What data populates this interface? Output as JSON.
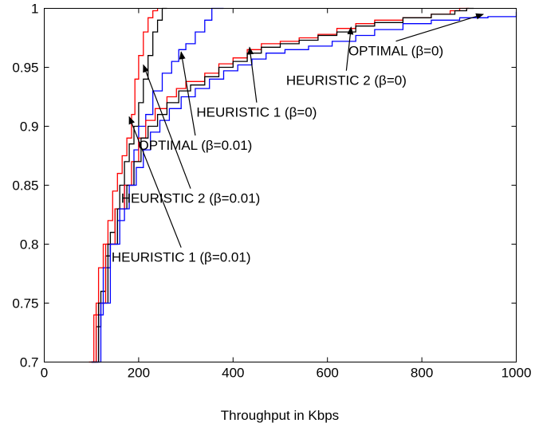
{
  "chart_data": {
    "type": "line",
    "title": "",
    "xlabel": "Throughput in Kbps",
    "ylabel": "",
    "xlim": [
      0,
      1000
    ],
    "ylim": [
      0.7,
      1
    ],
    "xticks": [
      0,
      200,
      400,
      600,
      800,
      1000
    ],
    "xtick_labels": [
      "0",
      "200",
      "400",
      "600",
      "800",
      "1000"
    ],
    "yticks": [
      0.7,
      0.75,
      0.8,
      0.85,
      0.9,
      0.95,
      1
    ],
    "ytick_labels": [
      "0.7",
      "0.75",
      "0.8",
      "0.85",
      "0.9",
      "0.95",
      "1"
    ],
    "grid": false,
    "legend": "none",
    "series": [
      {
        "color": "#ff0000",
        "points": [
          [
            95,
            0.7
          ],
          [
            105,
            0.74
          ],
          [
            115,
            0.78
          ],
          [
            125,
            0.8
          ],
          [
            135,
            0.82
          ],
          [
            145,
            0.845
          ],
          [
            155,
            0.86
          ],
          [
            165,
            0.875
          ],
          [
            175,
            0.89
          ],
          [
            185,
            0.91
          ],
          [
            192,
            0.94
          ],
          [
            200,
            0.96
          ],
          [
            210,
            0.98
          ],
          [
            220,
            0.992
          ],
          [
            230,
            0.998
          ],
          [
            240,
            1.0
          ]
        ]
      },
      {
        "color": "#000000",
        "points": [
          [
            100,
            0.7
          ],
          [
            110,
            0.73
          ],
          [
            120,
            0.76
          ],
          [
            130,
            0.79
          ],
          [
            140,
            0.81
          ],
          [
            150,
            0.83
          ],
          [
            160,
            0.85
          ],
          [
            170,
            0.87
          ],
          [
            180,
            0.885
          ],
          [
            190,
            0.9
          ],
          [
            200,
            0.92
          ],
          [
            210,
            0.94
          ],
          [
            220,
            0.96
          ],
          [
            230,
            0.98
          ],
          [
            240,
            0.99
          ],
          [
            250,
            1.0
          ],
          [
            260,
            1.0
          ]
        ]
      },
      {
        "color": "#0000ff",
        "points": [
          [
            100,
            0.7
          ],
          [
            115,
            0.74
          ],
          [
            125,
            0.78
          ],
          [
            140,
            0.8
          ],
          [
            155,
            0.82
          ],
          [
            170,
            0.85
          ],
          [
            190,
            0.88
          ],
          [
            200,
            0.9
          ],
          [
            215,
            0.91
          ],
          [
            230,
            0.93
          ],
          [
            250,
            0.945
          ],
          [
            270,
            0.955
          ],
          [
            285,
            0.965
          ],
          [
            300,
            0.97
          ],
          [
            320,
            0.98
          ],
          [
            340,
            0.99
          ],
          [
            355,
            1.0
          ],
          [
            380,
            1.0
          ]
        ]
      },
      {
        "color": "#ff0000",
        "points": [
          [
            95,
            0.7
          ],
          [
            110,
            0.75
          ],
          [
            130,
            0.8
          ],
          [
            150,
            0.83
          ],
          [
            170,
            0.85
          ],
          [
            185,
            0.87
          ],
          [
            200,
            0.89
          ],
          [
            215,
            0.905
          ],
          [
            235,
            0.915
          ],
          [
            260,
            0.925
          ],
          [
            280,
            0.932
          ],
          [
            300,
            0.938
          ],
          [
            340,
            0.945
          ],
          [
            370,
            0.953
          ],
          [
            400,
            0.958
          ],
          [
            430,
            0.965
          ],
          [
            460,
            0.97
          ],
          [
            500,
            0.972
          ],
          [
            540,
            0.975
          ],
          [
            580,
            0.978
          ],
          [
            620,
            0.983
          ],
          [
            660,
            0.987
          ],
          [
            700,
            0.99
          ],
          [
            760,
            0.992
          ],
          [
            820,
            0.995
          ],
          [
            860,
            0.998
          ],
          [
            880,
            1.0
          ],
          [
            900,
            1.0
          ]
        ]
      },
      {
        "color": "#000000",
        "points": [
          [
            100,
            0.7
          ],
          [
            115,
            0.75
          ],
          [
            135,
            0.8
          ],
          [
            155,
            0.83
          ],
          [
            175,
            0.85
          ],
          [
            190,
            0.87
          ],
          [
            205,
            0.89
          ],
          [
            220,
            0.9
          ],
          [
            240,
            0.91
          ],
          [
            260,
            0.92
          ],
          [
            285,
            0.93
          ],
          [
            310,
            0.935
          ],
          [
            340,
            0.942
          ],
          [
            370,
            0.95
          ],
          [
            400,
            0.955
          ],
          [
            430,
            0.962
          ],
          [
            460,
            0.967
          ],
          [
            500,
            0.97
          ],
          [
            540,
            0.973
          ],
          [
            580,
            0.977
          ],
          [
            620,
            0.98
          ],
          [
            660,
            0.985
          ],
          [
            700,
            0.988
          ],
          [
            760,
            0.992
          ],
          [
            820,
            0.995
          ],
          [
            870,
            0.998
          ],
          [
            895,
            1.0
          ],
          [
            910,
            1.0
          ]
        ]
      },
      {
        "color": "#0000ff",
        "points": [
          [
            100,
            0.7
          ],
          [
            120,
            0.75
          ],
          [
            140,
            0.8
          ],
          [
            160,
            0.83
          ],
          [
            180,
            0.85
          ],
          [
            195,
            0.865
          ],
          [
            210,
            0.88
          ],
          [
            225,
            0.895
          ],
          [
            245,
            0.905
          ],
          [
            265,
            0.915
          ],
          [
            290,
            0.925
          ],
          [
            320,
            0.932
          ],
          [
            350,
            0.94
          ],
          [
            380,
            0.947
          ],
          [
            410,
            0.952
          ],
          [
            440,
            0.957
          ],
          [
            470,
            0.962
          ],
          [
            510,
            0.965
          ],
          [
            560,
            0.968
          ],
          [
            610,
            0.972
          ],
          [
            660,
            0.977
          ],
          [
            700,
            0.982
          ],
          [
            760,
            0.987
          ],
          [
            820,
            0.99
          ],
          [
            880,
            0.992
          ],
          [
            940,
            0.993
          ],
          [
            1000,
            0.997
          ]
        ]
      }
    ],
    "annotations": [
      {
        "text": "OPTIMAL (β=0)",
        "x": 745,
        "y": 0.96,
        "arrow_to": [
          930,
          0.995
        ]
      },
      {
        "text": "HEURISTIC 2 (β=0)",
        "x": 640,
        "y": 0.935,
        "arrow_to": [
          650,
          0.984
        ]
      },
      {
        "text": "HEURISTIC 1 (β=0)",
        "x": 450,
        "y": 0.908,
        "arrow_to": [
          435,
          0.967
        ]
      },
      {
        "text": "OPTIMAL (β=0.01)",
        "x": 320,
        "y": 0.88,
        "arrow_to": [
          290,
          0.963
        ]
      },
      {
        "text": "HEURISTIC 2 (β=0.01)",
        "x": 310,
        "y": 0.835,
        "arrow_to": [
          210,
          0.952
        ]
      },
      {
        "text": "HEURISTIC 1 (β=0.01)",
        "x": 290,
        "y": 0.785,
        "arrow_to": [
          180,
          0.908
        ]
      }
    ]
  }
}
